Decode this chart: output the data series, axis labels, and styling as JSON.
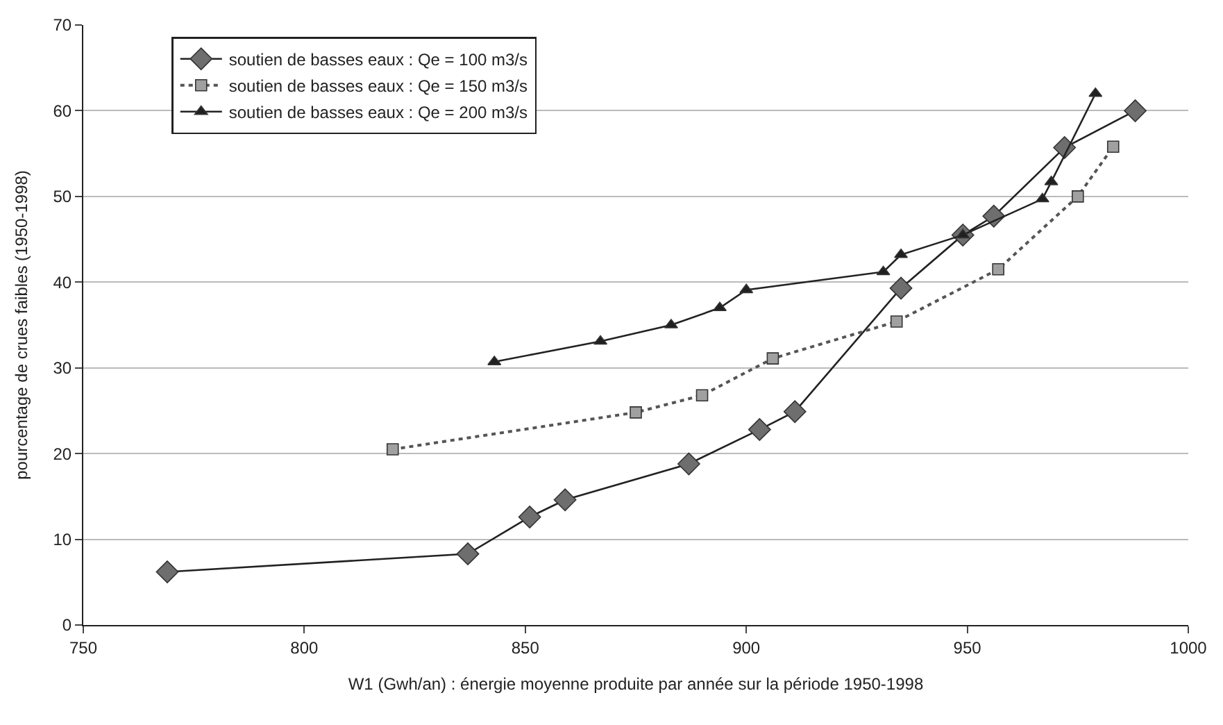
{
  "chart_data": {
    "type": "line",
    "xlabel": "W1 (Gwh/an) : énergie moyenne produite par année sur la période 1950-1998",
    "ylabel": "pourcentage de crues faibles (1950-1998)",
    "xlim": [
      750,
      1000
    ],
    "xticks": [
      750,
      800,
      850,
      900,
      950,
      1000
    ],
    "ylim": [
      0,
      70
    ],
    "yticks": [
      0,
      10,
      20,
      30,
      40,
      50,
      60,
      70
    ],
    "grid": "y",
    "legend": "top left",
    "series": [
      {
        "name": "soutien de basses eaux : Qe = 100 m3/s",
        "color": "#6e6e6e",
        "marker": "diamond",
        "line_style": "solid",
        "x": [
          769,
          837,
          851,
          859,
          887,
          903,
          911,
          935,
          949,
          956,
          972,
          988
        ],
        "values": [
          6.2,
          8.3,
          12.6,
          14.6,
          18.8,
          22.8,
          24.9,
          39.3,
          45.5,
          47.7,
          55.7,
          60
        ]
      },
      {
        "name": "soutien de basses eaux : Qe = 150 m3/s",
        "color": "#a0a0a0",
        "marker": "square",
        "line_style": "dotted",
        "x": [
          820,
          875,
          890,
          906,
          934,
          957,
          975,
          983
        ],
        "values": [
          20.5,
          24.8,
          26.8,
          31.1,
          35.4,
          41.5,
          50,
          55.8
        ]
      },
      {
        "name": "soutien de basses eaux : Qe = 200 m3/s",
        "color": "#202020",
        "marker": "triangle",
        "line_style": "solid",
        "x": [
          843,
          867,
          883,
          894,
          900,
          931,
          935,
          949,
          967,
          969,
          979
        ],
        "values": [
          30.7,
          33.1,
          35,
          37,
          39.1,
          41.2,
          43.2,
          45.5,
          49.7,
          51.7,
          62
        ]
      }
    ]
  }
}
